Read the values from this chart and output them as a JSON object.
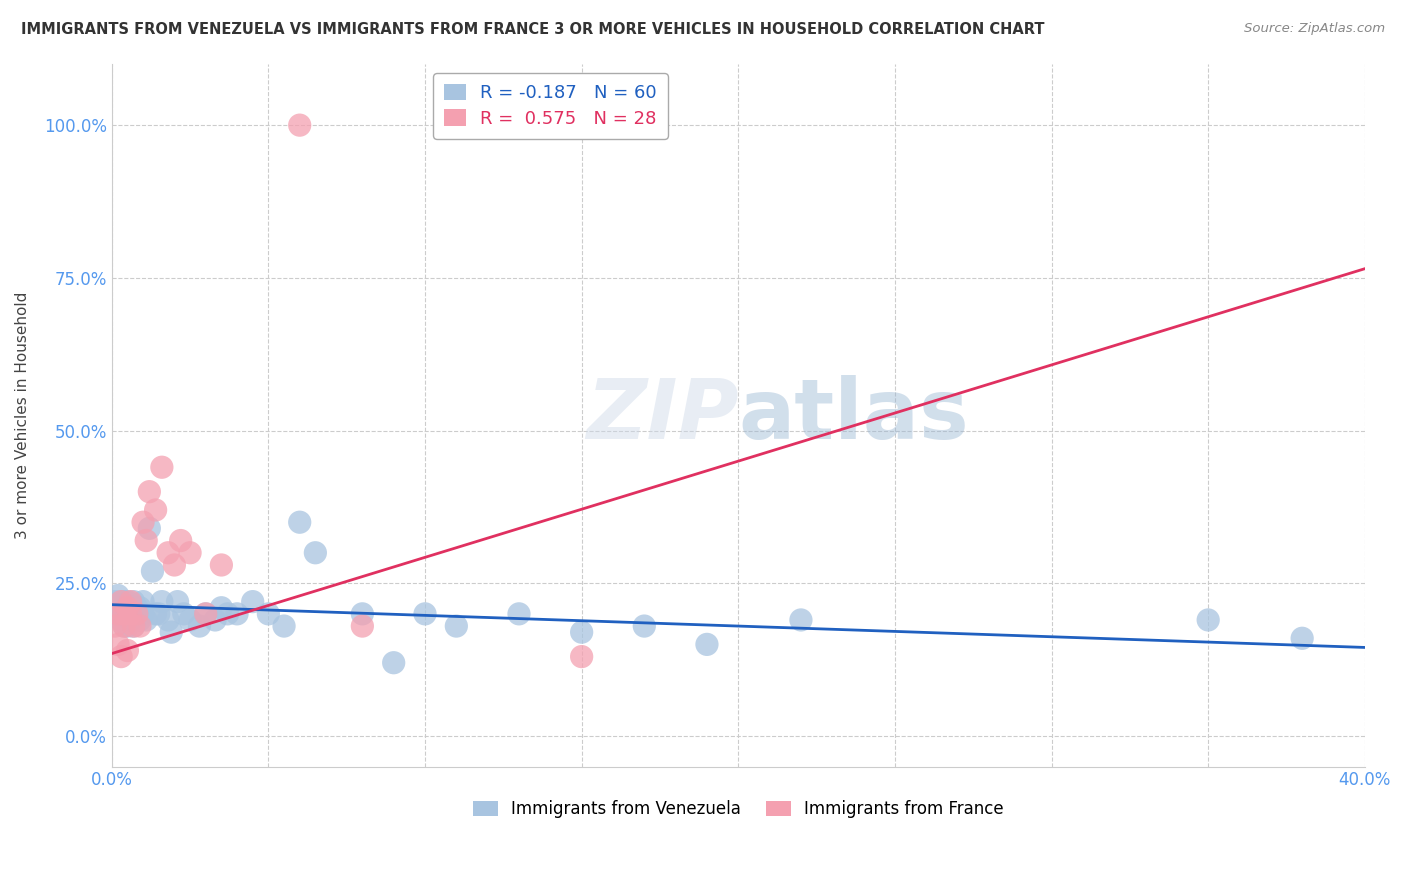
{
  "title": "IMMIGRANTS FROM VENEZUELA VS IMMIGRANTS FROM FRANCE 3 OR MORE VEHICLES IN HOUSEHOLD CORRELATION CHART",
  "source": "Source: ZipAtlas.com",
  "ylabel": "3 or more Vehicles in Household",
  "ytick_labels": [
    "0.0%",
    "25.0%",
    "50.0%",
    "75.0%",
    "100.0%"
  ],
  "ytick_values": [
    0.0,
    0.25,
    0.5,
    0.75,
    1.0
  ],
  "xlim": [
    0.0,
    0.4
  ],
  "ylim": [
    -0.05,
    1.1
  ],
  "watermark": "ZIPatlas",
  "R_venezuela": -0.187,
  "N_venezuela": 60,
  "R_france": 0.575,
  "N_france": 28,
  "color_venezuela": "#a8c4e0",
  "color_france": "#f4a0b0",
  "line_color_venezuela": "#2060c0",
  "line_color_france": "#e03060",
  "background_color": "#ffffff",
  "ven_line_x0": 0.0,
  "ven_line_y0": 0.215,
  "ven_line_x1": 0.4,
  "ven_line_y1": 0.145,
  "fra_line_x0": 0.0,
  "fra_line_y0": 0.135,
  "fra_line_x1": 0.4,
  "fra_line_y1": 0.765,
  "venezuela_x": [
    0.001,
    0.001,
    0.002,
    0.002,
    0.002,
    0.003,
    0.003,
    0.003,
    0.004,
    0.004,
    0.004,
    0.005,
    0.005,
    0.005,
    0.005,
    0.006,
    0.006,
    0.006,
    0.007,
    0.007,
    0.007,
    0.008,
    0.008,
    0.009,
    0.009,
    0.01,
    0.01,
    0.011,
    0.012,
    0.013,
    0.014,
    0.015,
    0.016,
    0.018,
    0.019,
    0.021,
    0.023,
    0.025,
    0.028,
    0.03,
    0.033,
    0.035,
    0.037,
    0.04,
    0.045,
    0.05,
    0.055,
    0.06,
    0.065,
    0.08,
    0.09,
    0.1,
    0.11,
    0.13,
    0.15,
    0.17,
    0.19,
    0.22,
    0.35,
    0.38
  ],
  "venezuela_y": [
    0.2,
    0.22,
    0.21,
    0.2,
    0.23,
    0.19,
    0.21,
    0.22,
    0.2,
    0.18,
    0.22,
    0.21,
    0.2,
    0.18,
    0.22,
    0.2,
    0.21,
    0.19,
    0.2,
    0.22,
    0.18,
    0.21,
    0.2,
    0.19,
    0.21,
    0.2,
    0.22,
    0.19,
    0.34,
    0.27,
    0.2,
    0.2,
    0.22,
    0.19,
    0.17,
    0.22,
    0.2,
    0.19,
    0.18,
    0.2,
    0.19,
    0.21,
    0.2,
    0.2,
    0.22,
    0.2,
    0.18,
    0.35,
    0.3,
    0.2,
    0.12,
    0.2,
    0.18,
    0.2,
    0.17,
    0.18,
    0.15,
    0.19,
    0.19,
    0.16
  ],
  "france_x": [
    0.001,
    0.002,
    0.002,
    0.003,
    0.003,
    0.004,
    0.004,
    0.005,
    0.005,
    0.006,
    0.006,
    0.007,
    0.008,
    0.009,
    0.01,
    0.011,
    0.012,
    0.014,
    0.016,
    0.018,
    0.02,
    0.022,
    0.025,
    0.03,
    0.035,
    0.06,
    0.08,
    0.15
  ],
  "france_y": [
    0.18,
    0.2,
    0.15,
    0.22,
    0.13,
    0.2,
    0.18,
    0.21,
    0.14,
    0.2,
    0.22,
    0.18,
    0.2,
    0.18,
    0.35,
    0.32,
    0.4,
    0.37,
    0.44,
    0.3,
    0.28,
    0.32,
    0.3,
    0.2,
    0.28,
    1.0,
    0.18,
    0.13
  ]
}
